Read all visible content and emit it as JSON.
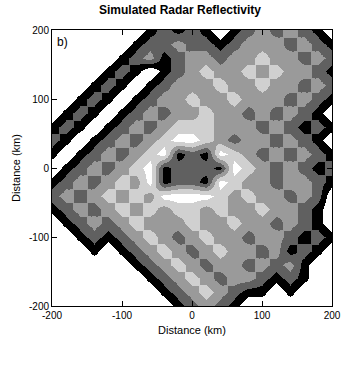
{
  "chart_data": {
    "type": "heatmap",
    "title": "Simulated Radar Reflectivity",
    "panel_label": "b)",
    "x_label": "Distance (km)",
    "y_label": "Distance (km)",
    "x": [
      -200,
      -180,
      -160,
      -140,
      -120,
      -100,
      -80,
      -60,
      -40,
      -20,
      0,
      20,
      40,
      60,
      80,
      100,
      120,
      140,
      160,
      180,
      200
    ],
    "y": [
      200,
      180,
      160,
      140,
      120,
      100,
      80,
      60,
      40,
      20,
      0,
      -20,
      -40,
      -60,
      -80,
      -100,
      -120,
      -140,
      -160,
      -180,
      -200
    ],
    "z": [
      [
        0,
        0,
        0,
        0,
        0,
        0,
        0,
        15,
        25,
        15,
        25,
        15,
        0,
        15,
        25,
        35,
        25,
        35,
        25,
        15,
        0
      ],
      [
        0,
        0,
        0,
        0,
        0,
        0,
        15,
        25,
        25,
        35,
        25,
        25,
        15,
        25,
        35,
        35,
        35,
        25,
        35,
        25,
        15
      ],
      [
        0,
        0,
        0,
        0,
        0,
        15,
        25,
        35,
        15,
        25,
        35,
        35,
        25,
        35,
        35,
        45,
        35,
        35,
        25,
        35,
        25
      ],
      [
        0,
        0,
        0,
        0,
        15,
        25,
        15,
        0,
        15,
        25,
        35,
        45,
        35,
        35,
        45,
        35,
        45,
        35,
        35,
        25,
        15
      ],
      [
        0,
        0,
        0,
        15,
        25,
        15,
        0,
        15,
        25,
        35,
        35,
        35,
        45,
        35,
        35,
        45,
        35,
        35,
        25,
        35,
        25
      ],
      [
        0,
        0,
        15,
        25,
        15,
        0,
        15,
        25,
        35,
        35,
        45,
        35,
        35,
        45,
        35,
        35,
        35,
        25,
        35,
        25,
        15
      ],
      [
        0,
        15,
        25,
        15,
        0,
        15,
        25,
        35,
        25,
        35,
        35,
        45,
        35,
        35,
        25,
        35,
        25,
        35,
        25,
        15,
        0
      ],
      [
        15,
        25,
        15,
        0,
        15,
        25,
        35,
        25,
        35,
        45,
        45,
        45,
        35,
        35,
        35,
        25,
        35,
        25,
        15,
        25,
        15
      ],
      [
        25,
        15,
        0,
        15,
        25,
        35,
        25,
        35,
        45,
        55,
        55,
        45,
        35,
        25,
        35,
        35,
        25,
        35,
        25,
        15,
        0
      ],
      [
        15,
        0,
        15,
        25,
        35,
        25,
        35,
        45,
        55,
        15,
        25,
        15,
        55,
        45,
        35,
        25,
        35,
        25,
        35,
        25,
        15
      ],
      [
        0,
        15,
        25,
        35,
        25,
        35,
        45,
        55,
        15,
        25,
        25,
        25,
        15,
        55,
        45,
        35,
        25,
        35,
        25,
        15,
        25
      ],
      [
        15,
        25,
        35,
        25,
        35,
        45,
        35,
        55,
        15,
        25,
        25,
        15,
        55,
        45,
        35,
        35,
        25,
        35,
        35,
        25,
        15
      ],
      [
        25,
        35,
        25,
        35,
        45,
        35,
        45,
        35,
        55,
        55,
        55,
        55,
        45,
        35,
        45,
        35,
        35,
        25,
        35,
        25,
        0
      ],
      [
        15,
        25,
        35,
        25,
        35,
        45,
        35,
        45,
        35,
        45,
        45,
        35,
        45,
        35,
        35,
        45,
        35,
        35,
        25,
        15,
        0
      ],
      [
        0,
        15,
        25,
        35,
        25,
        35,
        45,
        35,
        35,
        35,
        45,
        35,
        35,
        45,
        35,
        35,
        25,
        35,
        25,
        15,
        0
      ],
      [
        0,
        0,
        15,
        25,
        15,
        25,
        35,
        45,
        35,
        25,
        35,
        45,
        35,
        35,
        25,
        35,
        35,
        25,
        15,
        25,
        15
      ],
      [
        0,
        0,
        0,
        15,
        0,
        15,
        25,
        35,
        45,
        35,
        25,
        35,
        45,
        35,
        35,
        25,
        35,
        15,
        25,
        15,
        0
      ],
      [
        0,
        0,
        0,
        0,
        0,
        0,
        15,
        25,
        35,
        45,
        35,
        25,
        35,
        35,
        25,
        35,
        25,
        35,
        15,
        0,
        0
      ],
      [
        0,
        0,
        0,
        0,
        0,
        0,
        0,
        15,
        25,
        35,
        45,
        35,
        25,
        35,
        35,
        25,
        15,
        25,
        15,
        0,
        0
      ],
      [
        0,
        0,
        0,
        0,
        0,
        0,
        0,
        0,
        15,
        25,
        35,
        45,
        35,
        25,
        15,
        15,
        0,
        15,
        0,
        0,
        0
      ],
      [
        0,
        0,
        0,
        0,
        0,
        0,
        0,
        0,
        0,
        15,
        25,
        35,
        25,
        15,
        0,
        0,
        0,
        0,
        0,
        0,
        0
      ]
    ],
    "zlim": [
      0,
      60
    ],
    "xlim": [
      -200,
      200
    ],
    "ylim": [
      -200,
      200
    ],
    "xticks": [
      -200,
      -100,
      0,
      100,
      200
    ],
    "yticks": [
      -200,
      -100,
      0,
      100,
      200
    ],
    "grid": false
  }
}
